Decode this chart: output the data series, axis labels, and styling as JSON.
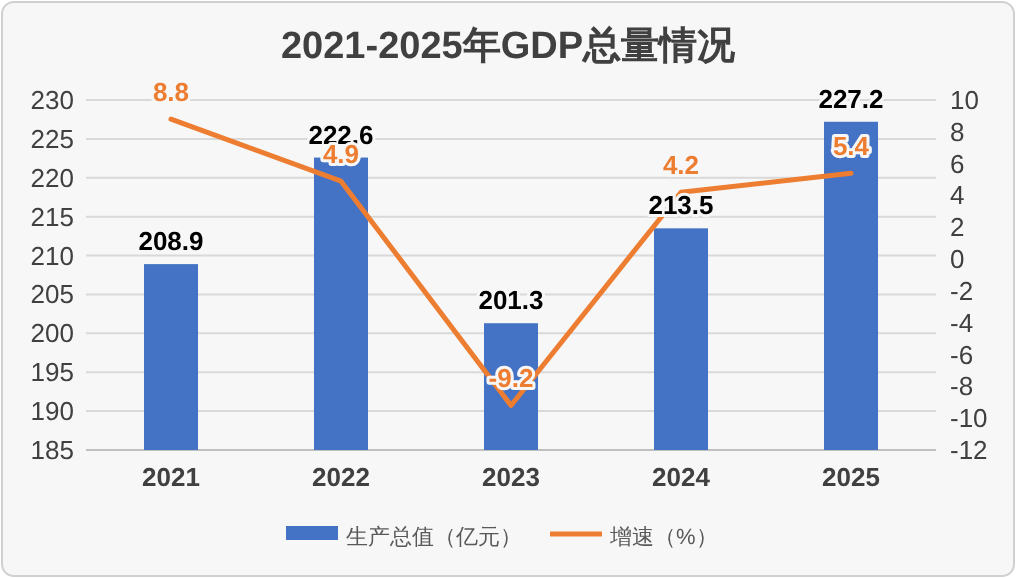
{
  "chart_data": {
    "type": "bar",
    "title": "2021-2025年GDP总量情况",
    "categories": [
      "2021",
      "2022",
      "2023",
      "2024",
      "2025"
    ],
    "series": [
      {
        "name": "生产总值（亿元）",
        "color": "#4472c4",
        "values": [
          208.9,
          222.6,
          201.3,
          213.5,
          227.2
        ]
      },
      {
        "name": "增速（%）",
        "type": "line",
        "axis": "y2",
        "color": "#ed7d31",
        "values": [
          8.8,
          4.9,
          -9.2,
          4.2,
          5.4
        ]
      }
    ],
    "ylim": [
      185,
      230
    ],
    "yticks": [
      185,
      190,
      195,
      200,
      205,
      210,
      215,
      220,
      225,
      230
    ],
    "y2lim": [
      -12,
      10
    ],
    "y2ticks": [
      -12,
      -10,
      -8,
      -6,
      -4,
      -2,
      0,
      2,
      4,
      6,
      8,
      10
    ],
    "grid": "y",
    "legend": "bottom",
    "data_labels": true
  }
}
